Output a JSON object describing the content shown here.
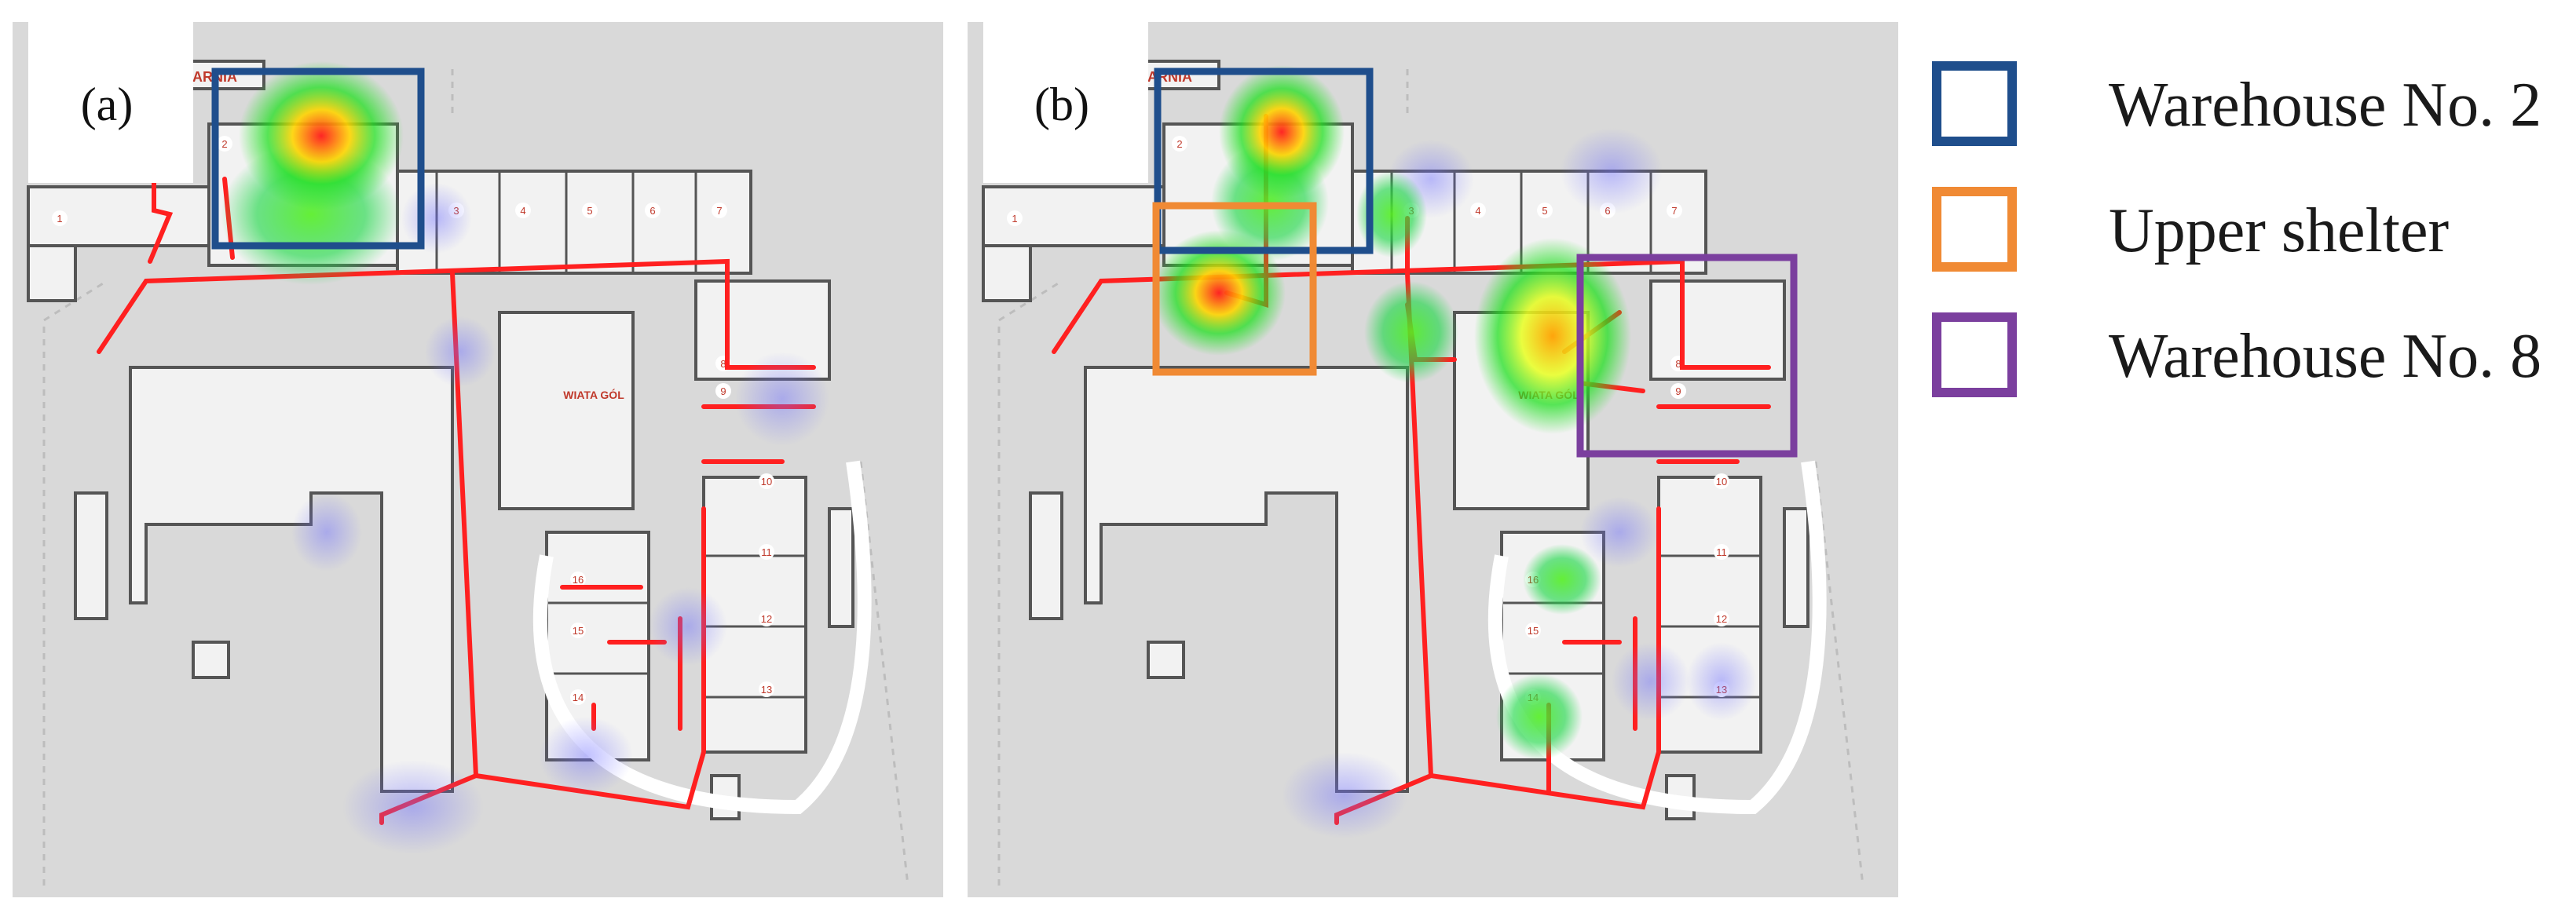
{
  "panels": [
    {
      "id": "a",
      "label": "(a)"
    },
    {
      "id": "b",
      "label": "(b)"
    }
  ],
  "map_labels": {
    "top_building": "PRÓBKARNIA",
    "shelter": "WIATA GÓL",
    "warehouse_numbers": [
      "1",
      "2",
      "3",
      "4",
      "5",
      "6",
      "7",
      "8",
      "9",
      "10",
      "11",
      "12",
      "13",
      "14",
      "15",
      "16"
    ]
  },
  "legend": [
    {
      "label": "Warehouse No. 2",
      "color": "#1f4e8c"
    },
    {
      "label": "Upper shelter",
      "color": "#f08a34"
    },
    {
      "label": "Warehouse No. 8",
      "color": "#7b3f9e"
    }
  ]
}
